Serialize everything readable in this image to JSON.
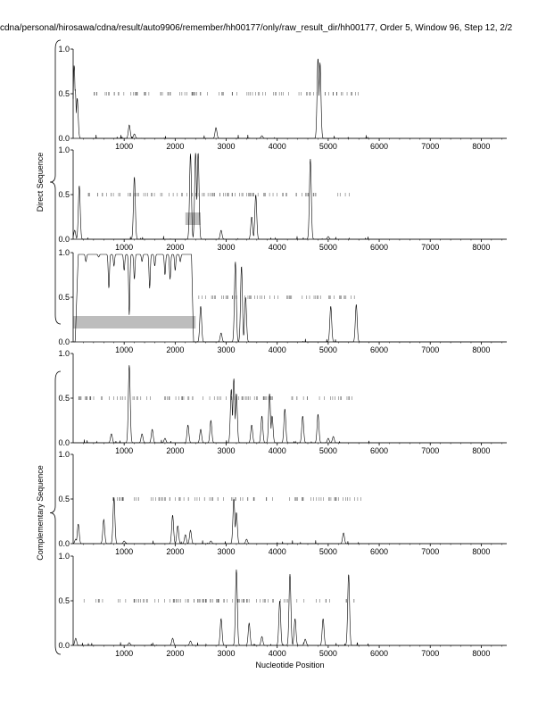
{
  "title": "cdna/personal/hirosawa/cdna/result/auto9906/remember/hh00177/only/raw_result_dir/hh00177, Order 5, Window 96, Step 12, 2/2",
  "xlabel": "Nucleotide Position",
  "group_labels": [
    "Direct Sequence",
    "Complementary Sequence"
  ],
  "chart_data": {
    "type": "line",
    "xlim": [
      0,
      8500
    ],
    "ylim": [
      0,
      1.0
    ],
    "x_ticks": [
      1000,
      2000,
      3000,
      4000,
      5000,
      6000,
      7000,
      8000
    ],
    "x_tick_labels": [
      "1000",
      "2000",
      "3000",
      "4000",
      "5000",
      "6000",
      "7000",
      "8000"
    ],
    "y_ticks": [
      0,
      0.5,
      1.0
    ],
    "y_tick_labels": [
      "0.0",
      "0.5",
      "1.0"
    ],
    "grid": false,
    "panels": [
      {
        "group": "Direct Sequence",
        "peaks": [
          [
            20,
            0.82
          ],
          [
            40,
            0.55
          ],
          [
            80,
            0.45
          ],
          [
            1100,
            0.15
          ],
          [
            1200,
            0.05
          ],
          [
            2800,
            0.12
          ],
          [
            3700,
            0.03
          ],
          [
            4800,
            0.9
          ],
          [
            4840,
            0.85
          ]
        ],
        "highlight": null,
        "marks_range": [
          250,
          5600
        ],
        "marks_count": 95
      },
      {
        "group": "Direct Sequence",
        "peaks": [
          [
            30,
            0.1
          ],
          [
            120,
            0.6
          ],
          [
            1200,
            0.7
          ],
          [
            2300,
            0.96
          ],
          [
            2400,
            0.97
          ],
          [
            2450,
            0.97
          ],
          [
            2900,
            0.1
          ],
          [
            3500,
            0.25
          ],
          [
            3580,
            0.5
          ],
          [
            4650,
            0.9
          ],
          [
            5000,
            0.03
          ]
        ],
        "highlight": [
          2200,
          2500,
          0.16,
          0.3
        ],
        "marks_range": [
          250,
          5600
        ],
        "marks_count": 95
      },
      {
        "group": "Direct Sequence",
        "peaks": [
          [
            2500,
            0.4
          ],
          [
            2900,
            0.1
          ],
          [
            3180,
            0.9
          ],
          [
            3300,
            0.85
          ],
          [
            3380,
            0.5
          ],
          [
            5050,
            0.4
          ],
          [
            5550,
            0.42
          ]
        ],
        "plateau": [
          100,
          2320,
          0.98
        ],
        "dips": [
          [
            250,
            0.9
          ],
          [
            500,
            0.95
          ],
          [
            700,
            0.6
          ],
          [
            800,
            0.85
          ],
          [
            1000,
            0.8
          ],
          [
            1100,
            0.3
          ],
          [
            1200,
            0.7
          ],
          [
            1350,
            0.9
          ],
          [
            1500,
            0.6
          ],
          [
            1600,
            0.85
          ],
          [
            1800,
            0.75
          ],
          [
            1900,
            0.7
          ],
          [
            2000,
            0.8
          ],
          [
            2100,
            0.9
          ]
        ],
        "highlight": [
          0,
          2400,
          0.15,
          0.29
        ],
        "marks_range": [
          2400,
          5600
        ],
        "marks_count": 55
      },
      {
        "group": "Complementary Sequence",
        "peaks": [
          [
            750,
            0.1
          ],
          [
            1100,
            0.87
          ],
          [
            1350,
            0.1
          ],
          [
            1550,
            0.15
          ],
          [
            1800,
            0.05
          ],
          [
            2250,
            0.2
          ],
          [
            2500,
            0.15
          ],
          [
            2700,
            0.25
          ],
          [
            3100,
            0.6
          ],
          [
            3150,
            0.72
          ],
          [
            3200,
            0.55
          ],
          [
            3500,
            0.2
          ],
          [
            3700,
            0.3
          ],
          [
            3850,
            0.55
          ],
          [
            3900,
            0.3
          ],
          [
            4150,
            0.38
          ],
          [
            4500,
            0.3
          ],
          [
            4800,
            0.32
          ],
          [
            5000,
            0.05
          ],
          [
            5100,
            0.07
          ]
        ],
        "highlight": null,
        "marks_range": [
          100,
          5600
        ],
        "marks_count": 95
      },
      {
        "group": "Complementary Sequence",
        "peaks": [
          [
            50,
            0.05
          ],
          [
            100,
            0.22
          ],
          [
            600,
            0.27
          ],
          [
            800,
            0.52
          ],
          [
            1000,
            0.03
          ],
          [
            1950,
            0.32
          ],
          [
            2050,
            0.2
          ],
          [
            2200,
            0.1
          ],
          [
            2300,
            0.15
          ],
          [
            2700,
            0.03
          ],
          [
            3150,
            0.5
          ],
          [
            3200,
            0.35
          ],
          [
            3400,
            0.05
          ],
          [
            5300,
            0.12
          ]
        ],
        "highlight": null,
        "marks_range": [
          700,
          5650
        ],
        "marks_count": 90
      },
      {
        "group": "Complementary Sequence",
        "peaks": [
          [
            50,
            0.08
          ],
          [
            1100,
            0.03
          ],
          [
            1950,
            0.08
          ],
          [
            2300,
            0.05
          ],
          [
            2900,
            0.3
          ],
          [
            3200,
            0.85
          ],
          [
            3450,
            0.25
          ],
          [
            3700,
            0.1
          ],
          [
            4050,
            0.5
          ],
          [
            4250,
            0.8
          ],
          [
            4350,
            0.3
          ],
          [
            4550,
            0.07
          ],
          [
            4900,
            0.3
          ],
          [
            5400,
            0.8
          ]
        ],
        "highlight": null,
        "marks_range": [
          200,
          5650
        ],
        "marks_count": 95
      }
    ]
  }
}
